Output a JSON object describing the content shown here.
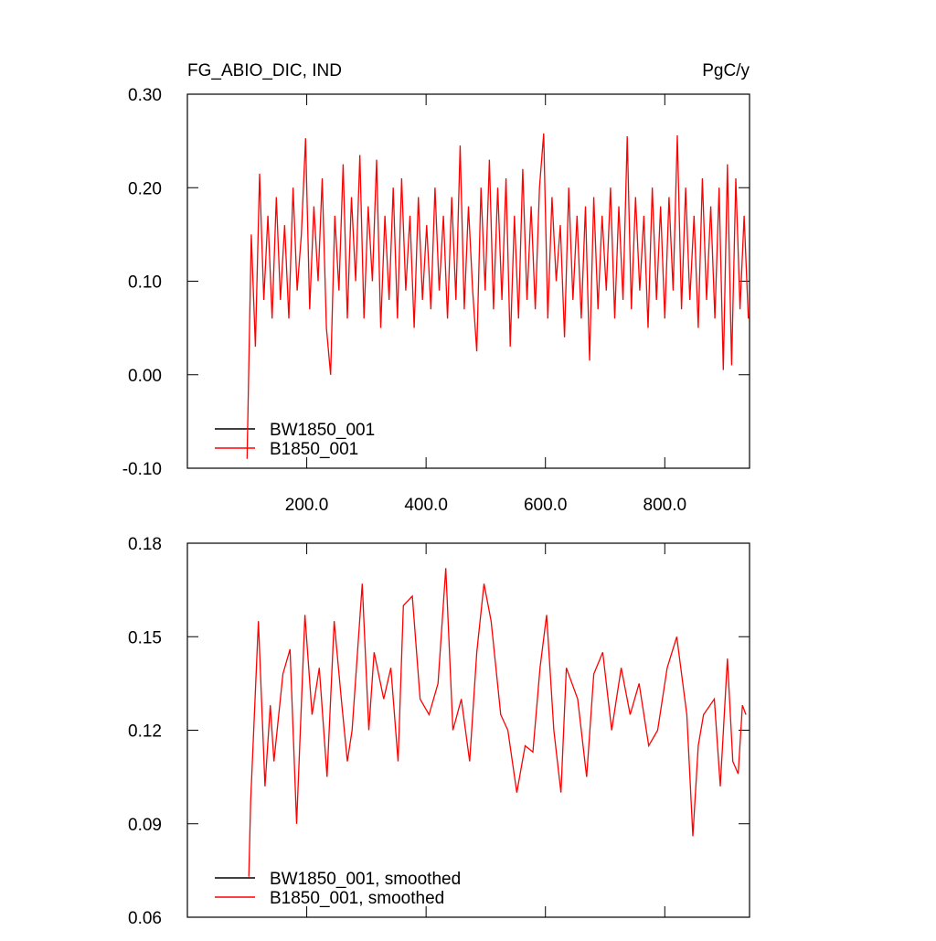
{
  "chart_data": [
    {
      "type": "line",
      "title": "FG_ABIO_DIC, IND",
      "units": "PgC/y",
      "xlim": [
        0,
        942
      ],
      "ylim": [
        -0.1,
        0.3
      ],
      "xticks": [
        {
          "value": 200,
          "label": "200.0"
        },
        {
          "value": 400,
          "label": "400.0"
        },
        {
          "value": 600,
          "label": "600.0"
        },
        {
          "value": 800,
          "label": "800.0"
        }
      ],
      "yticks": [
        {
          "value": 0.3,
          "label": "0.30"
        },
        {
          "value": 0.2,
          "label": "0.20"
        },
        {
          "value": 0.1,
          "label": "0.10"
        },
        {
          "value": 0,
          "label": "0.00"
        },
        {
          "value": -0.1,
          "label": "-0.10"
        }
      ],
      "legend": "lower left",
      "series": [
        {
          "name": "BW1850_001",
          "color": "#000000",
          "x": [],
          "values": []
        },
        {
          "name": "B1850_001",
          "color": "#ff0000",
          "x": [
            100,
            107,
            114,
            121,
            128,
            135,
            142,
            149,
            156,
            163,
            170,
            177,
            184,
            191,
            198,
            205,
            212,
            219,
            226,
            233,
            240,
            247,
            254,
            261,
            268,
            275,
            282,
            289,
            296,
            303,
            310,
            317,
            324,
            331,
            338,
            345,
            352,
            359,
            366,
            373,
            380,
            387,
            394,
            401,
            408,
            415,
            422,
            429,
            436,
            443,
            450,
            457,
            464,
            471,
            478,
            485,
            492,
            499,
            506,
            513,
            520,
            527,
            534,
            541,
            548,
            555,
            562,
            569,
            576,
            583,
            590,
            597,
            604,
            611,
            618,
            625,
            632,
            639,
            646,
            653,
            660,
            667,
            674,
            681,
            688,
            695,
            702,
            709,
            716,
            723,
            730,
            737,
            744,
            751,
            758,
            765,
            772,
            779,
            786,
            793,
            800,
            807,
            814,
            821,
            828,
            835,
            842,
            849,
            856,
            863,
            870,
            877,
            884,
            891,
            898,
            905,
            912,
            919,
            926,
            933,
            940
          ],
          "values": [
            -0.09,
            0.15,
            0.03,
            0.215,
            0.08,
            0.17,
            0.06,
            0.19,
            0.08,
            0.16,
            0.06,
            0.2,
            0.09,
            0.15,
            0.253,
            0.07,
            0.18,
            0.1,
            0.21,
            0.05,
            0.0,
            0.17,
            0.09,
            0.225,
            0.06,
            0.19,
            0.1,
            0.235,
            0.06,
            0.18,
            0.1,
            0.23,
            0.05,
            0.17,
            0.08,
            0.2,
            0.06,
            0.21,
            0.09,
            0.17,
            0.05,
            0.19,
            0.08,
            0.16,
            0.07,
            0.2,
            0.09,
            0.17,
            0.06,
            0.19,
            0.08,
            0.245,
            0.07,
            0.18,
            0.09,
            0.025,
            0.2,
            0.09,
            0.23,
            0.07,
            0.2,
            0.08,
            0.21,
            0.03,
            0.17,
            0.06,
            0.22,
            0.08,
            0.18,
            0.07,
            0.2,
            0.258,
            0.06,
            0.19,
            0.1,
            0.16,
            0.04,
            0.2,
            0.08,
            0.17,
            0.06,
            0.18,
            0.015,
            0.19,
            0.07,
            0.17,
            0.09,
            0.2,
            0.06,
            0.18,
            0.08,
            0.255,
            0.07,
            0.19,
            0.09,
            0.17,
            0.05,
            0.2,
            0.08,
            0.18,
            0.06,
            0.19,
            0.09,
            0.256,
            0.07,
            0.2,
            0.08,
            0.17,
            0.05,
            0.21,
            0.08,
            0.18,
            0.06,
            0.2,
            0.005,
            0.225,
            0.01,
            0.21,
            0.07,
            0.17,
            0.06
          ]
        }
      ]
    },
    {
      "type": "line",
      "xlim": [
        0,
        942
      ],
      "ylim": [
        0.06,
        0.18
      ],
      "xticks": [
        200,
        400,
        600,
        800
      ],
      "yticks": [
        0.18,
        0.15,
        0.12,
        0.09,
        0.06
      ],
      "legend": "lower left",
      "series": [
        {
          "name": "BW1850_001, smoothed",
          "color": "#000000",
          "x": [],
          "values": []
        },
        {
          "name": "B1850_001, smoothed",
          "color": "#ff0000",
          "x": [
            103,
            106,
            119,
            130,
            139,
            145,
            160,
            172,
            183,
            197,
            209,
            221,
            234,
            246,
            258,
            268,
            276,
            293,
            304,
            313,
            329,
            341,
            353,
            362,
            377,
            390,
            405,
            420,
            433,
            445,
            459,
            473,
            485,
            497,
            509,
            525,
            537,
            552,
            566,
            579,
            591,
            602,
            614,
            626,
            635,
            654,
            669,
            681,
            696,
            711,
            727,
            742,
            757,
            773,
            788,
            804,
            820,
            837,
            847,
            856,
            865,
            883,
            893,
            905,
            914,
            923,
            930,
            936
          ],
          "values": [
            0.073,
            0.097,
            0.155,
            0.102,
            0.128,
            0.11,
            0.138,
            0.146,
            0.09,
            0.157,
            0.125,
            0.14,
            0.105,
            0.155,
            0.13,
            0.11,
            0.12,
            0.167,
            0.12,
            0.145,
            0.13,
            0.14,
            0.11,
            0.16,
            0.163,
            0.13,
            0.125,
            0.135,
            0.172,
            0.12,
            0.13,
            0.11,
            0.145,
            0.167,
            0.155,
            0.125,
            0.12,
            0.1,
            0.115,
            0.113,
            0.14,
            0.157,
            0.12,
            0.1,
            0.14,
            0.13,
            0.105,
            0.138,
            0.145,
            0.12,
            0.14,
            0.125,
            0.135,
            0.115,
            0.12,
            0.14,
            0.15,
            0.125,
            0.086,
            0.115,
            0.125,
            0.13,
            0.102,
            0.143,
            0.11,
            0.106,
            0.128,
            0.125
          ]
        }
      ]
    }
  ]
}
